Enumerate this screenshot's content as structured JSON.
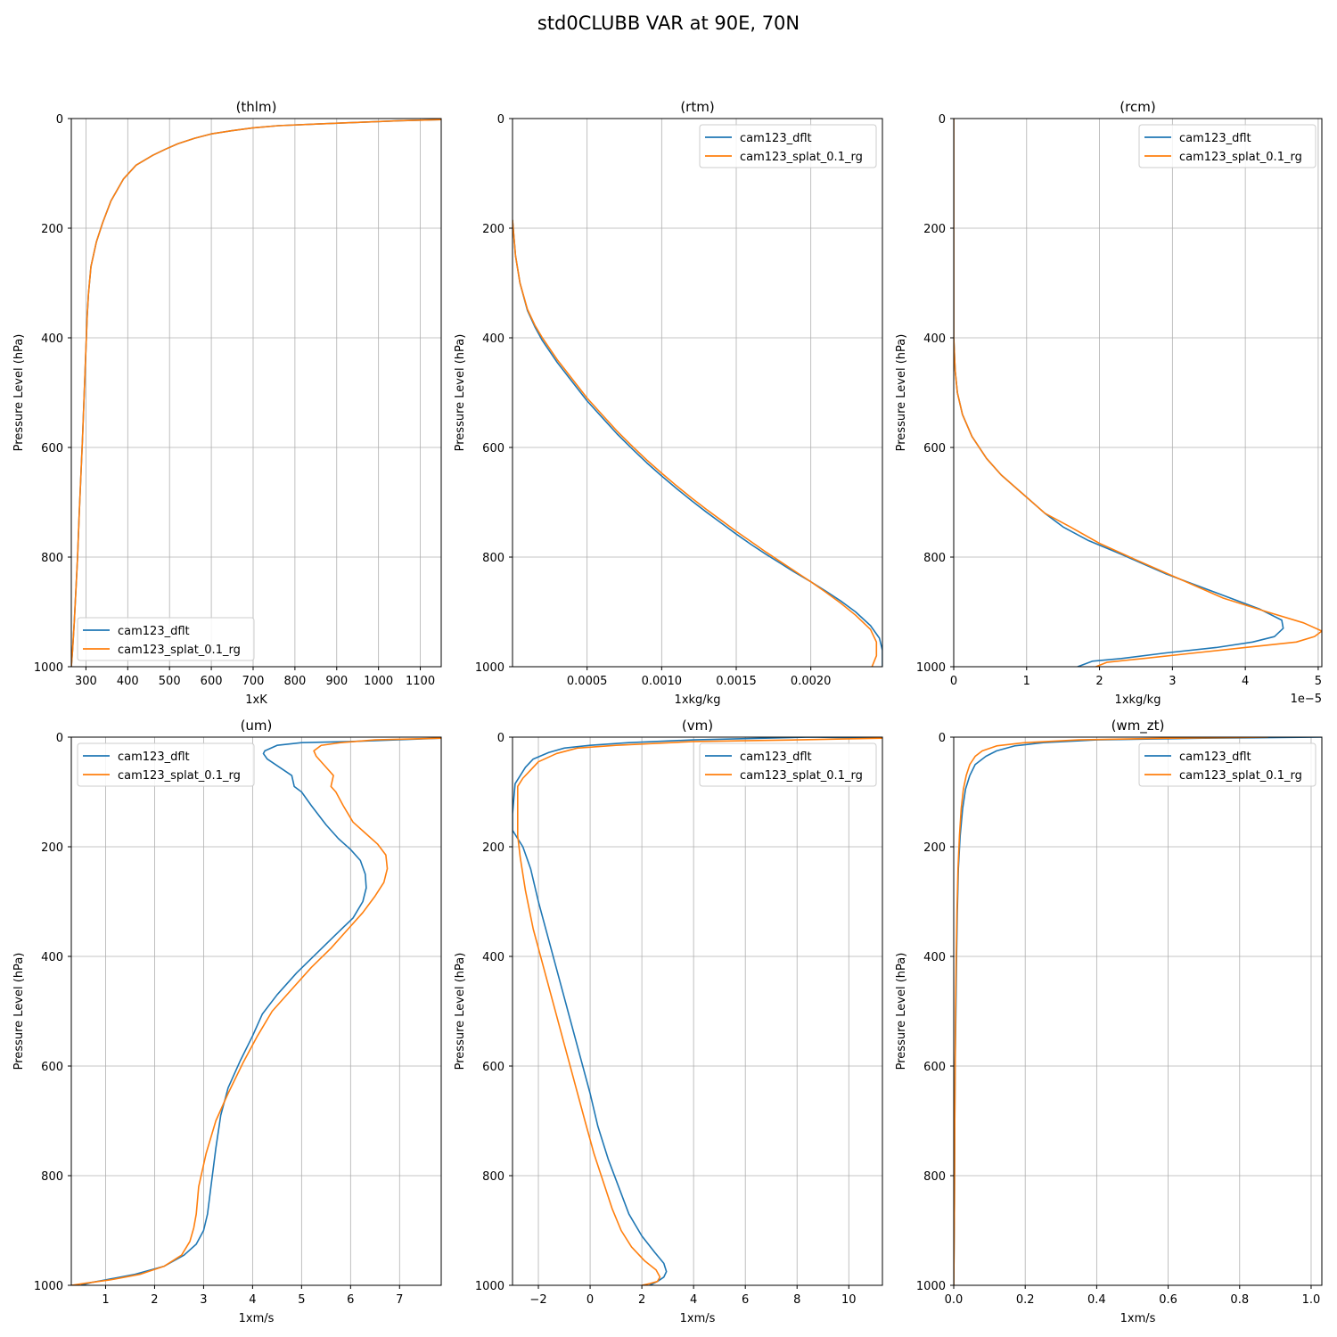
{
  "figure": {
    "title": "std0CLUBB VAR at 90E, 70N"
  },
  "colors": {
    "cam123_dflt": "#1f77b4",
    "cam123_splat_0.1_rg": "#ff7f0e",
    "grid": "#b0b0b0"
  },
  "chart_data": [
    {
      "id": "thlm",
      "type": "line",
      "title": "(thlm)",
      "xlabel": "1xK",
      "ylabel": "Pressure Level (hPa)",
      "xlim": [
        265,
        1150
      ],
      "ylim": [
        1000,
        0
      ],
      "xticks": [
        300,
        400,
        500,
        600,
        700,
        800,
        900,
        1000,
        1100
      ],
      "xtick_labels": [
        "300",
        "400",
        "500",
        "600",
        "700",
        "800",
        "900",
        "1000",
        "1100"
      ],
      "yticks": [
        0,
        200,
        400,
        600,
        800,
        1000
      ],
      "ytick_labels": [
        "0",
        "200",
        "400",
        "600",
        "800",
        "1000"
      ],
      "grid": true,
      "legend": "lower left",
      "offset_label": "",
      "series": [
        {
          "name": "cam123_dflt",
          "color": "#1f77b4",
          "x": [
            1150,
            1050,
            950,
            850,
            760,
            700,
            650,
            600,
            560,
            520,
            490,
            460,
            420,
            390,
            360,
            340,
            325,
            312,
            306,
            303,
            300,
            296,
            292,
            288,
            284,
            280,
            276,
            272,
            268,
            265
          ],
          "y": [
            2,
            4,
            7,
            10,
            13,
            17,
            22,
            28,
            36,
            46,
            56,
            67,
            85,
            110,
            150,
            190,
            225,
            270,
            320,
            360,
            420,
            500,
            580,
            650,
            720,
            800,
            860,
            920,
            970,
            1000
          ]
        },
        {
          "name": "cam123_splat_0.1_rg",
          "color": "#ff7f0e",
          "x": [
            1150,
            1050,
            950,
            850,
            760,
            700,
            650,
            600,
            560,
            520,
            490,
            460,
            420,
            390,
            360,
            340,
            325,
            312,
            306,
            303,
            300,
            296,
            292,
            288,
            284,
            280,
            276,
            272,
            268,
            265
          ],
          "y": [
            2,
            4,
            7,
            10,
            13,
            17,
            22,
            28,
            36,
            46,
            56,
            67,
            85,
            110,
            150,
            190,
            225,
            270,
            320,
            360,
            420,
            500,
            580,
            650,
            720,
            800,
            860,
            920,
            970,
            1000
          ]
        }
      ]
    },
    {
      "id": "rtm",
      "type": "line",
      "title": "(rtm)",
      "xlabel": "1xkg/kg",
      "ylabel": "Pressure Level (hPa)",
      "xlim": [
        0,
        0.00248
      ],
      "ylim": [
        1000,
        0
      ],
      "xticks": [
        0.0005,
        0.001,
        0.0015,
        0.002
      ],
      "xtick_labels": [
        "0.0005",
        "0.0010",
        "0.0015",
        "0.0020"
      ],
      "yticks": [
        0,
        200,
        400,
        600,
        800,
        1000
      ],
      "ytick_labels": [
        "0",
        "200",
        "400",
        "600",
        "800",
        "1000"
      ],
      "grid": true,
      "legend": "upper right",
      "offset_label": "",
      "series": [
        {
          "name": "cam123_dflt",
          "color": "#1f77b4",
          "x": [
            0.0,
            2e-05,
            5e-05,
            0.0001,
            0.00015,
            0.0002,
            0.0003,
            0.0004,
            0.0005,
            0.0006,
            0.0007,
            0.0008,
            0.0009,
            0.001,
            0.0011,
            0.0012,
            0.0013,
            0.0014,
            0.0015,
            0.0016,
            0.0017,
            0.0018,
            0.0019,
            0.002,
            0.0021,
            0.0022,
            0.0023,
            0.0024,
            0.00246,
            0.00248,
            0.00248
          ],
          "y": [
            185,
            250,
            300,
            350,
            380,
            405,
            445,
            480,
            515,
            545,
            575,
            602,
            628,
            652,
            675,
            697,
            718,
            738,
            758,
            777,
            795,
            812,
            829,
            845,
            862,
            880,
            900,
            925,
            948,
            970,
            1000
          ]
        },
        {
          "name": "cam123_splat_0.1_rg",
          "color": "#ff7f0e",
          "x": [
            0.0,
            2e-05,
            5e-05,
            0.0001,
            0.00015,
            0.0002,
            0.0003,
            0.0004,
            0.0005,
            0.0006,
            0.0007,
            0.0008,
            0.0009,
            0.001,
            0.0011,
            0.0012,
            0.0013,
            0.0014,
            0.0015,
            0.0016,
            0.0017,
            0.0018,
            0.0019,
            0.002,
            0.0021,
            0.0022,
            0.0023,
            0.0024,
            0.00244,
            0.00244,
            0.00241
          ],
          "y": [
            185,
            250,
            300,
            348,
            377,
            400,
            440,
            475,
            510,
            540,
            570,
            597,
            623,
            647,
            670,
            692,
            713,
            733,
            753,
            772,
            791,
            809,
            827,
            845,
            864,
            884,
            906,
            932,
            955,
            980,
            1000
          ]
        }
      ]
    },
    {
      "id": "rcm",
      "type": "line",
      "title": "(rcm)",
      "xlabel": "1xkg/kg",
      "ylabel": "Pressure Level (hPa)",
      "xlim": [
        0,
        5.05e-05
      ],
      "ylim": [
        1000,
        0
      ],
      "xticks": [
        0,
        1e-05,
        2e-05,
        3e-05,
        4e-05,
        5e-05
      ],
      "xtick_labels": [
        "0",
        "1",
        "2",
        "3",
        "4",
        "5"
      ],
      "yticks": [
        0,
        200,
        400,
        600,
        800,
        1000
      ],
      "ytick_labels": [
        "0",
        "200",
        "400",
        "600",
        "800",
        "1000"
      ],
      "grid": true,
      "legend": "upper right",
      "offset_label": "1e−5",
      "series": [
        {
          "name": "cam123_dflt",
          "color": "#1f77b4",
          "x": [
            0,
            0,
            0,
            2e-07,
            5e-07,
            1.2e-06,
            2.5e-06,
            4.5e-06,
            6.5e-06,
            9.5e-06,
            1.25e-05,
            1.5e-05,
            1.85e-05,
            2.3e-05,
            2.9e-05,
            3.6e-05,
            4.2e-05,
            4.5e-05,
            4.52e-05,
            4.4e-05,
            4.1e-05,
            3.6e-05,
            2.9e-05,
            2.3e-05,
            1.9e-05,
            1.7e-05
          ],
          "y": [
            0,
            200,
            400,
            460,
            500,
            540,
            580,
            620,
            650,
            685,
            720,
            745,
            770,
            795,
            830,
            865,
            895,
            915,
            930,
            945,
            955,
            965,
            975,
            985,
            990,
            1000
          ]
        },
        {
          "name": "cam123_splat_0.1_rg",
          "color": "#ff7f0e",
          "x": [
            0,
            0,
            0,
            2e-07,
            5e-07,
            1.2e-06,
            2.5e-06,
            4.5e-06,
            6.5e-06,
            9.5e-06,
            1.25e-05,
            1.6e-05,
            2e-05,
            2.5e-05,
            3.1e-05,
            3.7e-05,
            4.3e-05,
            4.8e-05,
            5.05e-05,
            4.95e-05,
            4.7e-05,
            4e-05,
            3.3e-05,
            2.6e-05,
            2.1e-05,
            1.95e-05
          ],
          "y": [
            0,
            200,
            400,
            460,
            500,
            540,
            580,
            620,
            650,
            685,
            720,
            745,
            775,
            805,
            840,
            875,
            900,
            920,
            935,
            945,
            955,
            965,
            975,
            985,
            992,
            1000
          ]
        }
      ]
    },
    {
      "id": "um",
      "type": "line",
      "title": "(um)",
      "xlabel": "1xm/s",
      "ylabel": "Pressure Level (hPa)",
      "xlim": [
        0.3,
        7.85
      ],
      "ylim": [
        1000,
        0
      ],
      "xticks": [
        1,
        2,
        3,
        4,
        5,
        6,
        7
      ],
      "xtick_labels": [
        "1",
        "2",
        "3",
        "4",
        "5",
        "6",
        "7"
      ],
      "yticks": [
        0,
        200,
        400,
        600,
        800,
        1000
      ],
      "ytick_labels": [
        "0",
        "200",
        "400",
        "600",
        "800",
        "1000"
      ],
      "grid": true,
      "legend": "upper left",
      "offset_label": "",
      "series": [
        {
          "name": "cam123_dflt",
          "color": "#1f77b4",
          "x": [
            7.85,
            6.0,
            5.0,
            4.5,
            4.25,
            4.22,
            4.3,
            4.8,
            4.85,
            5.0,
            5.2,
            5.5,
            5.75,
            6.0,
            6.2,
            6.3,
            6.32,
            6.25,
            6.05,
            5.7,
            5.3,
            4.9,
            4.5,
            4.2,
            4.0,
            3.75,
            3.5,
            3.35,
            3.25,
            3.15,
            3.08,
            3.0,
            2.85,
            2.6,
            2.2,
            1.6,
            1.0,
            0.7,
            0.5
          ],
          "y": [
            2,
            8,
            10,
            15,
            25,
            30,
            40,
            70,
            90,
            100,
            125,
            160,
            185,
            205,
            225,
            250,
            275,
            300,
            330,
            360,
            395,
            430,
            470,
            505,
            545,
            590,
            640,
            690,
            750,
            820,
            870,
            900,
            925,
            945,
            965,
            980,
            990,
            995,
            1000
          ]
        },
        {
          "name": "cam123_splat_0.1_rg",
          "color": "#ff7f0e",
          "x": [
            7.85,
            6.5,
            5.8,
            5.4,
            5.25,
            5.3,
            5.55,
            5.65,
            5.6,
            5.7,
            5.85,
            6.05,
            6.3,
            6.55,
            6.72,
            6.75,
            6.68,
            6.5,
            6.25,
            5.95,
            5.6,
            5.2,
            4.8,
            4.4,
            4.1,
            3.8,
            3.5,
            3.25,
            3.05,
            2.9,
            2.85,
            2.8,
            2.72,
            2.55,
            2.2,
            1.7,
            1.1,
            0.6,
            0.3
          ],
          "y": [
            2,
            5,
            10,
            15,
            25,
            35,
            60,
            70,
            90,
            100,
            125,
            155,
            175,
            195,
            215,
            240,
            265,
            290,
            320,
            350,
            385,
            420,
            460,
            500,
            545,
            595,
            650,
            700,
            760,
            820,
            870,
            895,
            920,
            945,
            965,
            980,
            990,
            996,
            1000
          ]
        }
      ]
    },
    {
      "id": "vm",
      "type": "line",
      "title": "(vm)",
      "xlabel": "1xm/s",
      "ylabel": "Pressure Level (hPa)",
      "xlim": [
        -3.0,
        11.3
      ],
      "ylim": [
        1000,
        0
      ],
      "xticks": [
        -2,
        0,
        2,
        4,
        6,
        8,
        10
      ],
      "xtick_labels": [
        "−2",
        "0",
        "2",
        "4",
        "6",
        "8",
        "10"
      ],
      "yticks": [
        0,
        200,
        400,
        600,
        800,
        1000
      ],
      "ytick_labels": [
        "0",
        "200",
        "400",
        "600",
        "800",
        "1000"
      ],
      "grid": true,
      "legend": "upper right",
      "offset_label": "",
      "series": [
        {
          "name": "cam123_dflt",
          "color": "#1f77b4",
          "x": [
            11.3,
            8.5,
            4.0,
            1.5,
            0.0,
            -1.0,
            -1.6,
            -2.2,
            -2.5,
            -2.7,
            -2.9,
            -3.0,
            -3.0,
            -2.6,
            -2.3,
            -2.0,
            -1.6,
            -1.2,
            -0.8,
            -0.4,
            0.0,
            0.3,
            0.7,
            1.1,
            1.5,
            2.0,
            2.5,
            2.85,
            2.95,
            2.85,
            2.6,
            2.3
          ],
          "y": [
            2,
            0,
            5,
            10,
            15,
            20,
            28,
            40,
            55,
            70,
            85,
            140,
            170,
            200,
            240,
            300,
            370,
            440,
            510,
            580,
            650,
            710,
            770,
            820,
            870,
            910,
            940,
            960,
            975,
            985,
            993,
            1000
          ]
        },
        {
          "name": "cam123_splat_0.1_rg",
          "color": "#ff7f0e",
          "x": [
            11.3,
            8.0,
            4.0,
            1.0,
            -0.5,
            -1.3,
            -2.0,
            -2.3,
            -2.6,
            -2.8,
            -2.8,
            -2.8,
            -2.7,
            -2.5,
            -2.2,
            -1.8,
            -1.4,
            -1.0,
            -0.6,
            -0.2,
            0.15,
            0.5,
            0.85,
            1.2,
            1.6,
            2.1,
            2.55,
            2.7,
            2.6,
            2.3,
            2.0
          ],
          "y": [
            2,
            5,
            8,
            15,
            20,
            30,
            45,
            60,
            75,
            90,
            130,
            180,
            220,
            280,
            350,
            420,
            490,
            560,
            630,
            700,
            760,
            810,
            860,
            900,
            930,
            955,
            972,
            985,
            993,
            997,
            1000
          ]
        }
      ]
    },
    {
      "id": "wm_zt",
      "type": "line",
      "title": "(wm_zt)",
      "xlabel": "1xm/s",
      "ylabel": "Pressure Level (hPa)",
      "xlim": [
        0,
        1.03
      ],
      "ylim": [
        1000,
        0
      ],
      "xticks": [
        0,
        0.2,
        0.4,
        0.6,
        0.8,
        1.0
      ],
      "xtick_labels": [
        "0.0",
        "0.2",
        "0.4",
        "0.6",
        "0.8",
        "1.0"
      ],
      "yticks": [
        0,
        200,
        400,
        600,
        800,
        1000
      ],
      "ytick_labels": [
        "0",
        "200",
        "400",
        "600",
        "800",
        "1000"
      ],
      "grid": true,
      "legend": "upper right",
      "offset_label": "",
      "series": [
        {
          "name": "cam123_dflt",
          "color": "#1f77b4",
          "x": [
            1.03,
            0.7,
            0.4,
            0.25,
            0.17,
            0.12,
            0.09,
            0.06,
            0.045,
            0.033,
            0.025,
            0.018,
            0.013,
            0.01,
            0.008,
            0.006,
            0.004,
            0.003,
            0.002,
            0.0
          ],
          "y": [
            0,
            2,
            5,
            10,
            16,
            25,
            35,
            50,
            70,
            95,
            130,
            180,
            240,
            320,
            400,
            500,
            600,
            700,
            850,
            1000
          ]
        },
        {
          "name": "cam123_splat_0.1_rg",
          "color": "#ff7f0e",
          "x": [
            0.88,
            0.6,
            0.35,
            0.2,
            0.12,
            0.08,
            0.06,
            0.045,
            0.035,
            0.027,
            0.021,
            0.016,
            0.012,
            0.009,
            0.007,
            0.005,
            0.004,
            0.003,
            0.002,
            0.0
          ],
          "y": [
            0,
            2,
            5,
            10,
            16,
            25,
            35,
            50,
            70,
            95,
            130,
            180,
            240,
            320,
            400,
            500,
            600,
            700,
            850,
            1000
          ]
        }
      ]
    }
  ]
}
